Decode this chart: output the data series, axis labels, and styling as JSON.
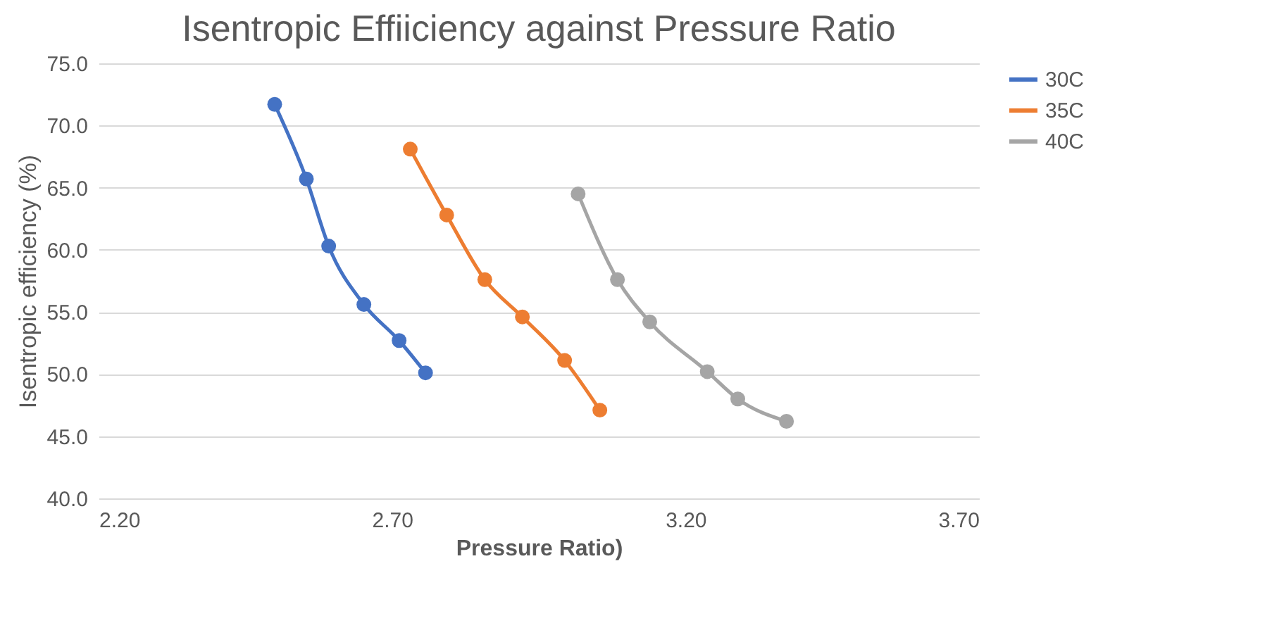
{
  "chart_data": {
    "type": "line",
    "title": "Isentropic Effiiciency against Pressure Ratio",
    "xlabel": "Pressure Ratio)",
    "ylabel": "Isentropic efficiency (%)",
    "xlim": [
      2.2,
      3.7
    ],
    "xticks": [
      {
        "value": 2.2,
        "label": "2.20"
      },
      {
        "value": 2.7,
        "label": "2.70"
      },
      {
        "value": 3.2,
        "label": "3.20"
      },
      {
        "value": 3.7,
        "label": "3.70"
      }
    ],
    "ylim": [
      40,
      75
    ],
    "yticks": [
      {
        "value": 40,
        "label": "40.0"
      },
      {
        "value": 45,
        "label": "45.0"
      },
      {
        "value": 50,
        "label": "50.0"
      },
      {
        "value": 55,
        "label": "55.0"
      },
      {
        "value": 60,
        "label": "60.0"
      },
      {
        "value": 65,
        "label": "65.0"
      },
      {
        "value": 70,
        "label": "70.0"
      },
      {
        "value": 75,
        "label": "75.0"
      }
    ],
    "grid": "y",
    "legend": "right",
    "marker": "circle",
    "line_style": "solid",
    "series": [
      {
        "name": "30C",
        "color": "#4472c4",
        "x": [
          2.5,
          2.554,
          2.592,
          2.652,
          2.712,
          2.757
        ],
        "values": [
          71.7,
          65.7,
          60.3,
          55.6,
          52.7,
          50.1
        ]
      },
      {
        "name": "35C",
        "color": "#ed7d31",
        "x": [
          2.731,
          2.793,
          2.858,
          2.922,
          2.994,
          3.054
        ],
        "values": [
          68.1,
          62.8,
          57.6,
          54.6,
          51.1,
          47.1
        ]
      },
      {
        "name": "40C",
        "color": "#a5a5a5",
        "x": [
          3.017,
          3.084,
          3.139,
          3.237,
          3.289,
          3.372
        ],
        "values": [
          64.5,
          57.6,
          54.2,
          50.2,
          48.0,
          46.2
        ]
      }
    ]
  }
}
